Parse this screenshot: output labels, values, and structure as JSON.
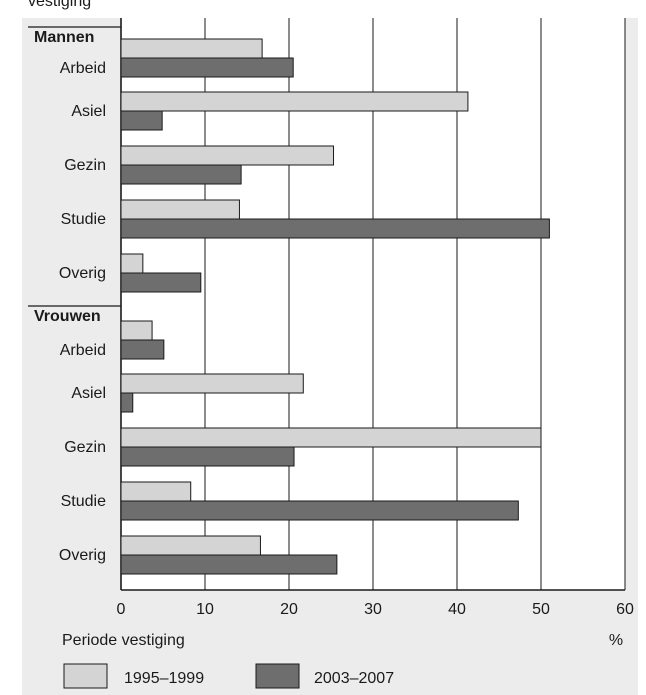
{
  "chart_data": {
    "type": "bar",
    "orientation": "horizontal",
    "x_unit_label": "%",
    "legend_title": "Periode vestiging",
    "legend_placement": "bottom",
    "xlim": [
      0,
      60
    ],
    "x_ticks": [
      "0",
      "10",
      "20",
      "30",
      "40",
      "50",
      "60"
    ],
    "grid": true,
    "top_label_partial": "vestiging",
    "groups": [
      {
        "name": "Mannen",
        "categories": [
          "Arbeid",
          "Asiel",
          "Gezin",
          "Studie",
          "Overig"
        ],
        "series": [
          {
            "name": "1995–1999",
            "values": [
              16.8,
              41.3,
              25.3,
              14.1,
              2.6
            ]
          },
          {
            "name": "2003–2007",
            "values": [
              20.5,
              4.9,
              14.3,
              51.0,
              9.5
            ]
          }
        ]
      },
      {
        "name": "Vrouwen",
        "categories": [
          "Arbeid",
          "Asiel",
          "Gezin",
          "Studie",
          "Overig"
        ],
        "series": [
          {
            "name": "1995–1999",
            "values": [
              3.7,
              21.7,
              50.0,
              8.3,
              16.6
            ]
          },
          {
            "name": "2003–2007",
            "values": [
              5.1,
              1.4,
              20.6,
              47.3,
              25.7
            ]
          }
        ]
      }
    ],
    "series_colors": [
      "#d4d4d4",
      "#6e6e6e"
    ]
  },
  "colors": {
    "panel_background": "#ececec",
    "plot_background": "#ffffff",
    "bar_stroke": "#1a1a1a"
  }
}
